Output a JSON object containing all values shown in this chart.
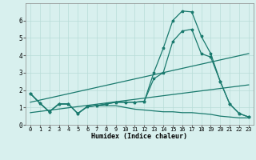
{
  "xlabel": "Humidex (Indice chaleur)",
  "x": [
    0,
    1,
    2,
    3,
    4,
    5,
    6,
    7,
    8,
    9,
    10,
    11,
    12,
    13,
    14,
    15,
    16,
    17,
    18,
    19,
    20,
    21,
    22,
    23
  ],
  "line1": [
    1.8,
    1.25,
    0.75,
    1.2,
    1.2,
    0.65,
    1.05,
    1.1,
    1.2,
    1.3,
    1.3,
    1.3,
    1.35,
    3.0,
    4.4,
    6.0,
    6.55,
    6.5,
    5.1,
    4.1,
    2.5,
    1.2,
    0.65,
    0.45
  ],
  "line2": [
    1.8,
    1.25,
    0.75,
    1.2,
    1.2,
    0.65,
    1.05,
    1.1,
    1.2,
    1.3,
    1.3,
    1.3,
    1.35,
    2.65,
    3.0,
    4.8,
    5.4,
    5.5,
    4.1,
    3.9,
    2.5,
    1.2,
    0.65,
    0.45
  ],
  "line3": [
    1.8,
    1.25,
    0.75,
    1.2,
    1.2,
    0.65,
    1.05,
    1.1,
    1.1,
    1.1,
    1.0,
    0.9,
    0.85,
    0.8,
    0.75,
    0.75,
    0.7,
    0.7,
    0.65,
    0.6,
    0.5,
    0.45,
    0.4,
    0.4
  ],
  "line_color": "#1a7a6e",
  "bg_color": "#d8f0ee",
  "grid_color": "#b8dcd8",
  "ylim": [
    0,
    7
  ],
  "xlim": [
    -0.5,
    23.5
  ],
  "yticks": [
    0,
    1,
    2,
    3,
    4,
    5,
    6
  ],
  "xticks": [
    0,
    1,
    2,
    3,
    4,
    5,
    6,
    7,
    8,
    9,
    10,
    11,
    12,
    13,
    14,
    15,
    16,
    17,
    18,
    19,
    20,
    21,
    22,
    23
  ],
  "trend1_x": [
    0,
    23
  ],
  "trend1_y": [
    1.3,
    4.1
  ],
  "trend2_x": [
    0,
    23
  ],
  "trend2_y": [
    0.7,
    2.3
  ]
}
